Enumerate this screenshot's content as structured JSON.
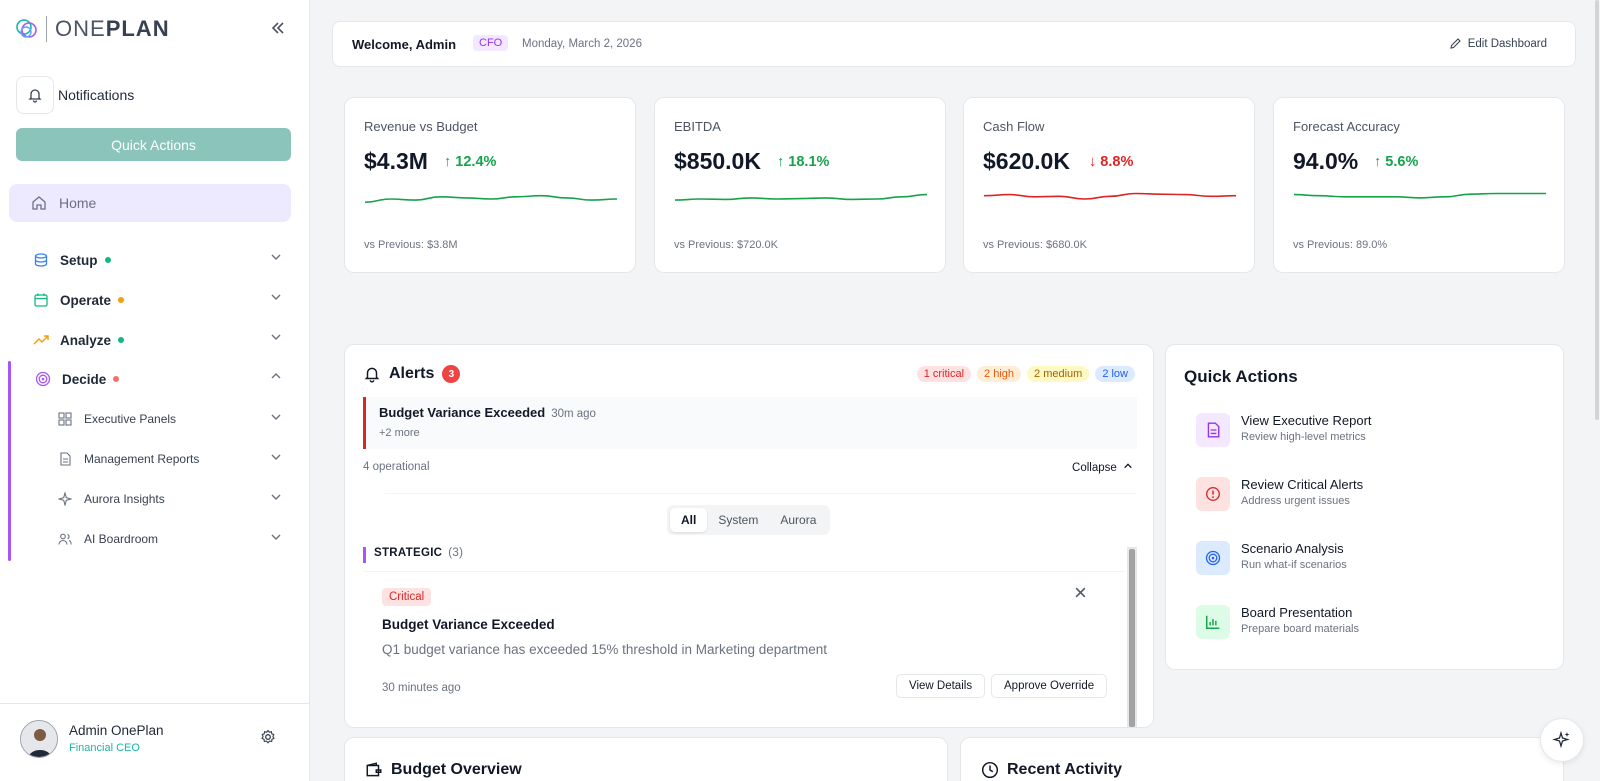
{
  "brand": {
    "name_light": "ONE",
    "name_bold": "PLAN"
  },
  "sidebar": {
    "collapse_icon": "double-chevron-left-icon",
    "notifications_label": "Notifications",
    "quick_actions_label": "Quick Actions",
    "home_label": "Home",
    "nav": [
      {
        "label": "Setup",
        "icon": "database-icon",
        "dot": "#10b981",
        "expanded": false
      },
      {
        "label": "Operate",
        "icon": "calendar-icon",
        "dot": "#f59e0b",
        "expanded": false
      },
      {
        "label": "Analyze",
        "icon": "trending-up-icon",
        "dot": "#10b981",
        "expanded": false
      },
      {
        "label": "Decide",
        "icon": "target-icon",
        "dot": "#f87171",
        "expanded": true
      }
    ],
    "sub_items": [
      {
        "label": "Executive Panels",
        "icon": "grid-icon"
      },
      {
        "label": "Management Reports",
        "icon": "document-icon"
      },
      {
        "label": "Aurora Insights",
        "icon": "sparkle-icon"
      },
      {
        "label": "AI Boardroom",
        "icon": "users-icon"
      }
    ],
    "user": {
      "name": "Admin OnePlan",
      "role": "Financial CEO"
    }
  },
  "header": {
    "welcome": "Welcome, Admin",
    "role_badge": "CFO",
    "date": "Monday, March 2, 2026",
    "edit_label": "Edit Dashboard"
  },
  "kpis": [
    {
      "title": "Revenue vs Budget",
      "value": "$4.3M",
      "change": "12.4%",
      "direction": "up",
      "previous": "vs Previous: $3.8M",
      "color": "#16a34a",
      "spark": [
        0.35,
        0.5,
        0.45,
        0.6,
        0.55,
        0.5,
        0.6,
        0.65,
        0.55,
        0.45,
        0.5
      ]
    },
    {
      "title": "EBITDA",
      "value": "$850.0K",
      "change": "18.1%",
      "direction": "up",
      "previous": "vs Previous: $720.0K",
      "color": "#16a34a",
      "spark": [
        0.45,
        0.5,
        0.48,
        0.55,
        0.5,
        0.52,
        0.55,
        0.48,
        0.5,
        0.6,
        0.7
      ]
    },
    {
      "title": "Cash Flow",
      "value": "$620.0K",
      "change": "8.8%",
      "direction": "down",
      "previous": "vs Previous: $680.0K",
      "color": "#dc2626",
      "spark": [
        0.65,
        0.7,
        0.6,
        0.62,
        0.5,
        0.62,
        0.75,
        0.72,
        0.7,
        0.62,
        0.65
      ]
    },
    {
      "title": "Forecast Accuracy",
      "value": "94.0%",
      "change": "5.6%",
      "direction": "up",
      "previous": "vs Previous: 89.0%",
      "color": "#16a34a",
      "spark": [
        0.7,
        0.65,
        0.6,
        0.6,
        0.6,
        0.55,
        0.6,
        0.72,
        0.75,
        0.75,
        0.75
      ]
    }
  ],
  "alerts": {
    "title": "Alerts",
    "count": "3",
    "pills": [
      {
        "label": "1 critical",
        "bg": "#fee2e2",
        "fg": "#dc2626"
      },
      {
        "label": "2 high",
        "bg": "#ffedd5",
        "fg": "#ea580c"
      },
      {
        "label": "2 medium",
        "bg": "#fef9c3",
        "fg": "#a16207"
      },
      {
        "label": "2 low",
        "bg": "#dbeafe",
        "fg": "#2563eb"
      }
    ],
    "top_alert": {
      "title": "Budget Variance Exceeded",
      "time": "30m ago",
      "more": "+2 more"
    },
    "operational": "4 operational",
    "collapse_label": "Collapse",
    "filters": [
      "All",
      "System",
      "Aurora"
    ],
    "group": {
      "label": "STRATEGIC",
      "count": "(3)"
    },
    "card": {
      "tag": "Critical",
      "title": "Budget Variance Exceeded",
      "description": "Q1 budget variance has exceeded 15% threshold in Marketing department",
      "time": "30 minutes ago",
      "view_label": "View Details",
      "approve_label": "Approve Override"
    }
  },
  "quick_actions": {
    "title": "Quick Actions",
    "items": [
      {
        "label": "View Executive Report",
        "sub": "Review high-level metrics",
        "icon": "file-text-icon",
        "bg": "#f3e8ff",
        "fg": "#9333ea"
      },
      {
        "label": "Review Critical Alerts",
        "sub": "Address urgent issues",
        "icon": "alert-circle-icon",
        "bg": "#fee2e2",
        "fg": "#dc2626"
      },
      {
        "label": "Scenario Analysis",
        "sub": "Run what-if scenarios",
        "icon": "target-icon",
        "bg": "#dbeafe",
        "fg": "#2563eb"
      },
      {
        "label": "Board Presentation",
        "sub": "Prepare board materials",
        "icon": "bar-chart-icon",
        "bg": "#dcfce7",
        "fg": "#16a34a"
      }
    ]
  },
  "bottom": {
    "budget_title": "Budget Overview",
    "activity_title": "Recent Activity"
  }
}
